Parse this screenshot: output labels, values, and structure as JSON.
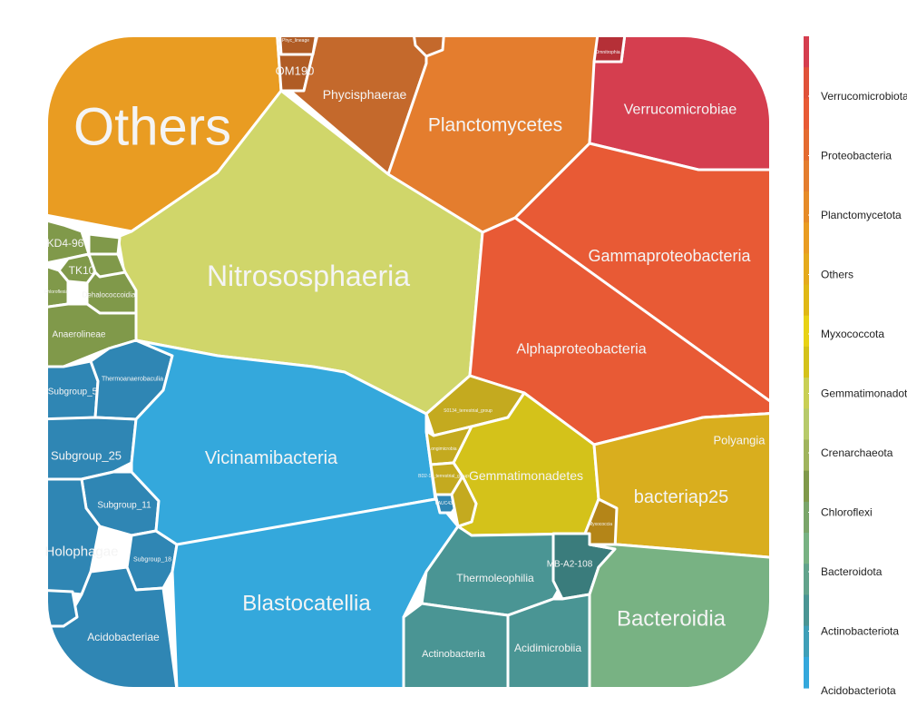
{
  "chart_data": {
    "type": "voronoi-treemap",
    "title": "",
    "colors": {
      "Verrucomicrobiota": "#d53e4f",
      "Proteobacteria": "#e85a35",
      "Planctomycetota": "#e47d2e",
      "Others": "#e99c22",
      "Myxococcota": "#e0b815",
      "Gemmatimonadota": "#d4c21a",
      "Crenarchaeota": "#d0d66a",
      "Chloroflexi": "#80994a",
      "Bacteroidota": "#78b283",
      "Actinobacteriota": "#4a9594",
      "Acidobacteriota": "#2f86b4",
      "Acidobacteriota_light": "#34a8dc"
    },
    "legend": {
      "entries": [
        "Verrucomicrobiota",
        "Proteobacteria",
        "Planctomycetota",
        "Others",
        "Myxococcota",
        "Gemmatimonadota",
        "Crenarchaeota",
        "Chloroflexi",
        "Bacteroidota",
        "Actinobacteriota",
        "Acidobacteriota"
      ],
      "labels": [
        "Verrucomicrobiota",
        "Proteobacteria",
        "Planctomycetota",
        "Others",
        "Myxococcota",
        "Gemmatimonadota",
        "Crenarchaeota",
        "Chloroflexi",
        "Bacteroidota",
        "Actinobacteriota",
        "Acidobacteriota"
      ],
      "placement": "right"
    },
    "cells": [
      {
        "label": "Others",
        "phylum": "Others"
      },
      {
        "label": "OM190",
        "phylum": "Planctomycetota"
      },
      {
        "label": "Phycisphaerae",
        "phylum": "Planctomycetota"
      },
      {
        "label": "Planctomycetes",
        "phylum": "Planctomycetota"
      },
      {
        "label": "Verrucomicrobiae",
        "phylum": "Verrucomicrobiota"
      },
      {
        "label": "Omnitrophia",
        "phylum": "Verrucomicrobiota"
      },
      {
        "label": "Nitrososphaeria",
        "phylum": "Crenarchaeota"
      },
      {
        "label": "Gammaproteobacteria",
        "phylum": "Proteobacteria"
      },
      {
        "label": "Alphaproteobacteria",
        "phylum": "Proteobacteria"
      },
      {
        "label": "KD4-96",
        "phylum": "Chloroflexi"
      },
      {
        "label": "TK10",
        "phylum": "Chloroflexi"
      },
      {
        "label": "Dehalococcoidia",
        "phylum": "Chloroflexi"
      },
      {
        "label": "Chloroflexia",
        "phylum": "Chloroflexi"
      },
      {
        "label": "Anaerolineae",
        "phylum": "Chloroflexi"
      },
      {
        "label": "Subgroup_5",
        "phylum": "Acidobacteriota"
      },
      {
        "label": "Thermoanaerobaculia",
        "phylum": "Acidobacteriota"
      },
      {
        "label": "Subgroup_25",
        "phylum": "Acidobacteriota"
      },
      {
        "label": "Subgroup_11",
        "phylum": "Acidobacteriota"
      },
      {
        "label": "Holophagae",
        "phylum": "Acidobacteriota"
      },
      {
        "label": "Subgroup_18",
        "phylum": "Acidobacteriota"
      },
      {
        "label": "Acidobacteriae",
        "phylum": "Acidobacteriota"
      },
      {
        "label": "Vicinamibacteria",
        "phylum": "Acidobacteriota"
      },
      {
        "label": "Blastocatellia",
        "phylum": "Acidobacteriota"
      },
      {
        "label": "S0134_terrestrial_group",
        "phylum": "Gemmatimonadota"
      },
      {
        "label": "Longimicrobia",
        "phylum": "Gemmatimonadota"
      },
      {
        "label": "Gemmatimonadetes",
        "phylum": "Gemmatimonadota"
      },
      {
        "label": "BD2-11_terrestrial_group",
        "phylum": "Gemmatimonadota"
      },
      {
        "label": "PAUC43f",
        "phylum": "Gemmatimonadota"
      },
      {
        "label": "Polyangia",
        "phylum": "Myxococcota"
      },
      {
        "label": "bacteriap25",
        "phylum": "Myxococcota"
      },
      {
        "label": "Myxococcia",
        "phylum": "Myxococcota"
      },
      {
        "label": "Thermoleophilia",
        "phylum": "Actinobacteriota"
      },
      {
        "label": "MB-A2-108",
        "phylum": "Actinobacteriota"
      },
      {
        "label": "Actinobacteria",
        "phylum": "Actinobacteriota"
      },
      {
        "label": "Acidimicrobiia",
        "phylum": "Actinobacteriota"
      },
      {
        "label": "Bacteroidia",
        "phylum": "Bacteroidota"
      },
      {
        "label": "Phyc_lineage",
        "phylum": "Planctomycetota"
      }
    ]
  }
}
